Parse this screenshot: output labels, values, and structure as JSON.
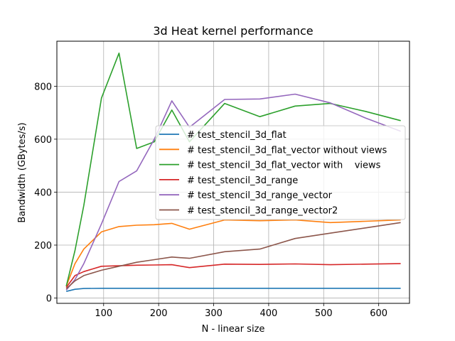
{
  "chart_data": {
    "type": "line",
    "title": "3d Heat kernel performance",
    "xlabel": "N - linear size",
    "ylabel": "Bandwidth (GBytes/s)",
    "xlim": [
      15,
      656
    ],
    "ylim": [
      -20,
      970
    ],
    "x_ticks": [
      100,
      200,
      300,
      400,
      500,
      600
    ],
    "y_ticks": [
      0,
      200,
      400,
      600,
      800
    ],
    "grid": true,
    "legend_position": "center-right",
    "series": [
      {
        "name": "# test_stencil_3d_flat",
        "color": "#1f77b4",
        "x": [
          32,
          48,
          64,
          96,
          128,
          160,
          192,
          224,
          256,
          320,
          384,
          448,
          512,
          576,
          640
        ],
        "y": [
          25,
          33,
          36,
          37,
          37,
          37,
          37,
          37,
          37,
          37,
          37,
          37,
          37,
          37,
          37
        ]
      },
      {
        "name": "# test_stencil_3d_flat_vector without views",
        "color": "#ff7f0e",
        "x": [
          32,
          48,
          64,
          96,
          128,
          160,
          192,
          224,
          256,
          320,
          384,
          448,
          512,
          576,
          640
        ],
        "y": [
          45,
          130,
          185,
          250,
          270,
          275,
          277,
          282,
          260,
          295,
          292,
          295,
          285,
          290,
          295
        ]
      },
      {
        "name": "# test_stencil_3d_flat_vector with    views",
        "color": "#2ca02c",
        "x": [
          32,
          48,
          64,
          96,
          128,
          160,
          192,
          224,
          256,
          320,
          384,
          448,
          512,
          576,
          640
        ],
        "y": [
          45,
          180,
          350,
          755,
          925,
          565,
          590,
          710,
          590,
          735,
          685,
          725,
          735,
          705,
          670
        ]
      },
      {
        "name": "# test_stencil_3d_range",
        "color": "#d62728",
        "x": [
          32,
          48,
          64,
          96,
          128,
          160,
          192,
          224,
          256,
          320,
          384,
          448,
          512,
          576,
          640
        ],
        "y": [
          40,
          85,
          100,
          120,
          122,
          124,
          125,
          126,
          115,
          128,
          127,
          129,
          126,
          128,
          130
        ]
      },
      {
        "name": "# test_stencil_3d_range_vector",
        "color": "#9467bd",
        "x": [
          32,
          48,
          64,
          96,
          128,
          160,
          192,
          224,
          256,
          320,
          384,
          448,
          512,
          576,
          640
        ],
        "y": [
          30,
          70,
          130,
          280,
          440,
          480,
          600,
          745,
          645,
          750,
          752,
          770,
          737,
          680,
          630
        ]
      },
      {
        "name": "# test_stencil_3d_range_vector2",
        "color": "#8c564b",
        "x": [
          32,
          48,
          64,
          96,
          128,
          160,
          192,
          224,
          256,
          320,
          384,
          448,
          512,
          576,
          640
        ],
        "y": [
          35,
          65,
          85,
          105,
          120,
          135,
          145,
          155,
          150,
          175,
          185,
          225,
          245,
          265,
          285
        ]
      }
    ]
  }
}
